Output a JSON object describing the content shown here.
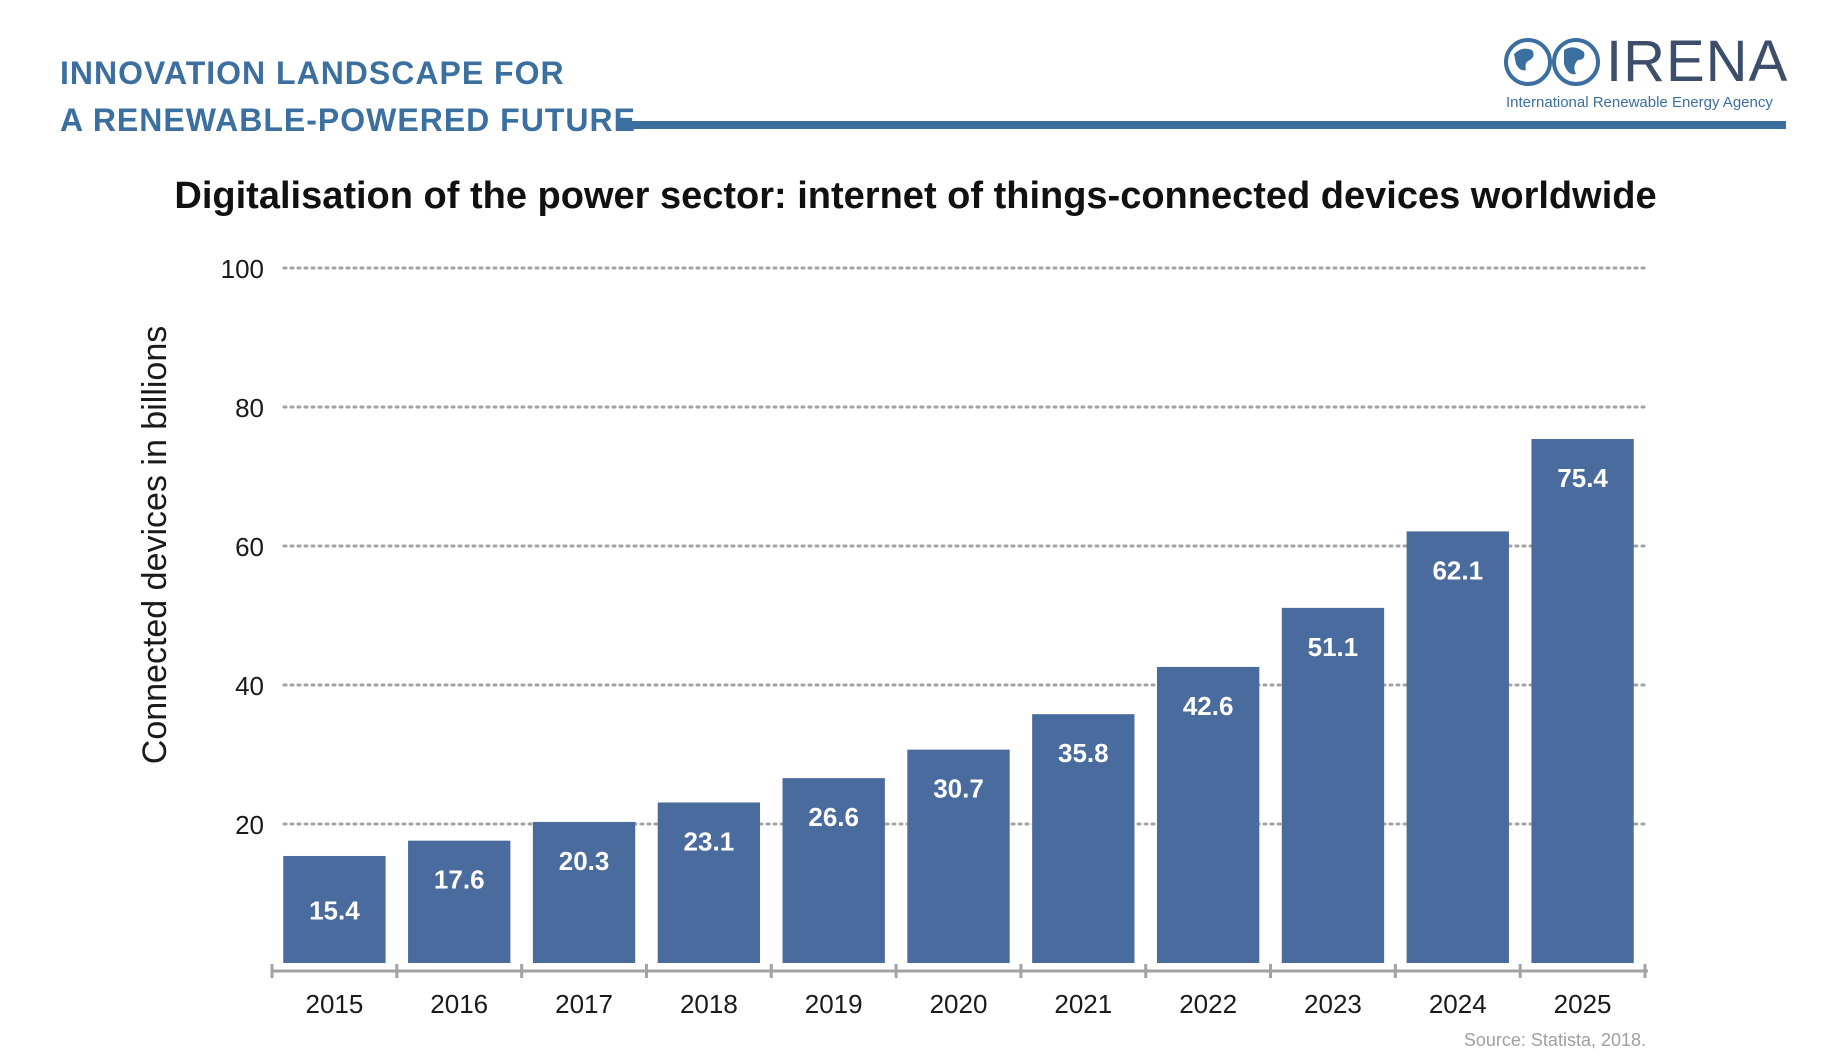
{
  "header": {
    "line1": "INNOVATION LANDSCAPE FOR",
    "line2": "A RENEWABLE-POWERED FUTURE",
    "accent_color": "#3a6fa0"
  },
  "logo": {
    "name": "IRENA",
    "subtitle": "International Renewable Energy Agency",
    "icon": "globe-icon"
  },
  "source": "Source: Statista, 2018.",
  "chart_data": {
    "type": "bar",
    "title": "Digitalisation of the power sector: internet of things-connected devices worldwide",
    "xlabel": "",
    "ylabel": "Connected devices in billions",
    "categories": [
      "2015",
      "2016",
      "2017",
      "2018",
      "2019",
      "2020",
      "2021",
      "2022",
      "2023",
      "2024",
      "2025"
    ],
    "values": [
      15.4,
      17.6,
      20.3,
      23.1,
      26.6,
      30.7,
      35.8,
      42.6,
      51.1,
      62.1,
      75.4
    ],
    "ylim": [
      0,
      100
    ],
    "yticks": [
      20,
      40,
      60,
      80,
      100
    ],
    "grid": true,
    "bar_color": "#4a6b9d",
    "data_labels": true
  }
}
